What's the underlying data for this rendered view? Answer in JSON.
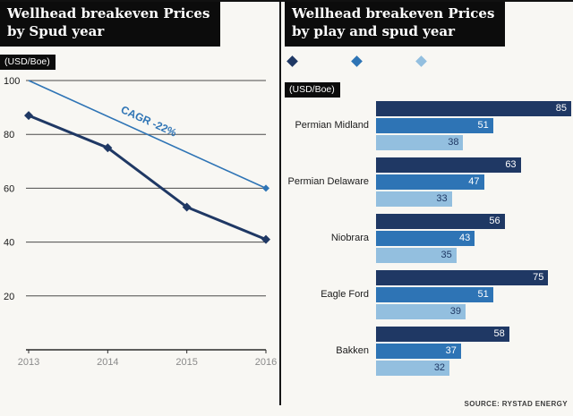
{
  "colors": {
    "dark": "#1f3864",
    "medium": "#2e74b5",
    "light": "#93bfdf",
    "header_bg": "#0c0c0c",
    "grid": "#4a4a4a",
    "axis": "#2b2b2b",
    "x_tick_text": "#8a8a8a",
    "y_tick_text": "#1a1a1a"
  },
  "source": "SOURCE: RYSTAD ENERGY",
  "chart_data": [
    {
      "type": "line",
      "title_line1": "Wellhead breakeven Prices",
      "title_line2": "by Spud year",
      "unit_label": "(USD/Boe)",
      "x": [
        "2013",
        "2014",
        "2015",
        "2016"
      ],
      "y_ticks": [
        100,
        80,
        60,
        40,
        20
      ],
      "ylim": [
        0,
        100
      ],
      "grid": true,
      "series": [
        {
          "name": "wellhead-breakeven-price",
          "values": [
            87,
            75,
            53,
            41
          ]
        }
      ],
      "trend_line": {
        "start_value": 100,
        "end_value": 60,
        "label": "CAGR -22%"
      }
    },
    {
      "type": "bar",
      "orientation": "horizontal",
      "title_line1": "Wellhead breakeven Prices",
      "title_line2": "by play and spud year",
      "unit_label": "(USD/Boe)",
      "legend_markers": [
        "spud-year-series-1",
        "spud-year-series-2",
        "spud-year-series-3"
      ],
      "categories": [
        "Permian Midland",
        "Permian Delaware",
        "Niobrara",
        "Eagle Ford",
        "Bakken"
      ],
      "series": [
        {
          "name": "spud-year-series-1",
          "color": "#1f3864",
          "values": [
            85,
            63,
            56,
            75,
            58
          ]
        },
        {
          "name": "spud-year-series-2",
          "color": "#2e74b5",
          "values": [
            51,
            47,
            43,
            51,
            37
          ]
        },
        {
          "name": "spud-year-series-3",
          "color": "#93bfdf",
          "values": [
            38,
            33,
            35,
            39,
            32
          ]
        }
      ],
      "xlim": [
        0,
        85
      ]
    }
  ]
}
